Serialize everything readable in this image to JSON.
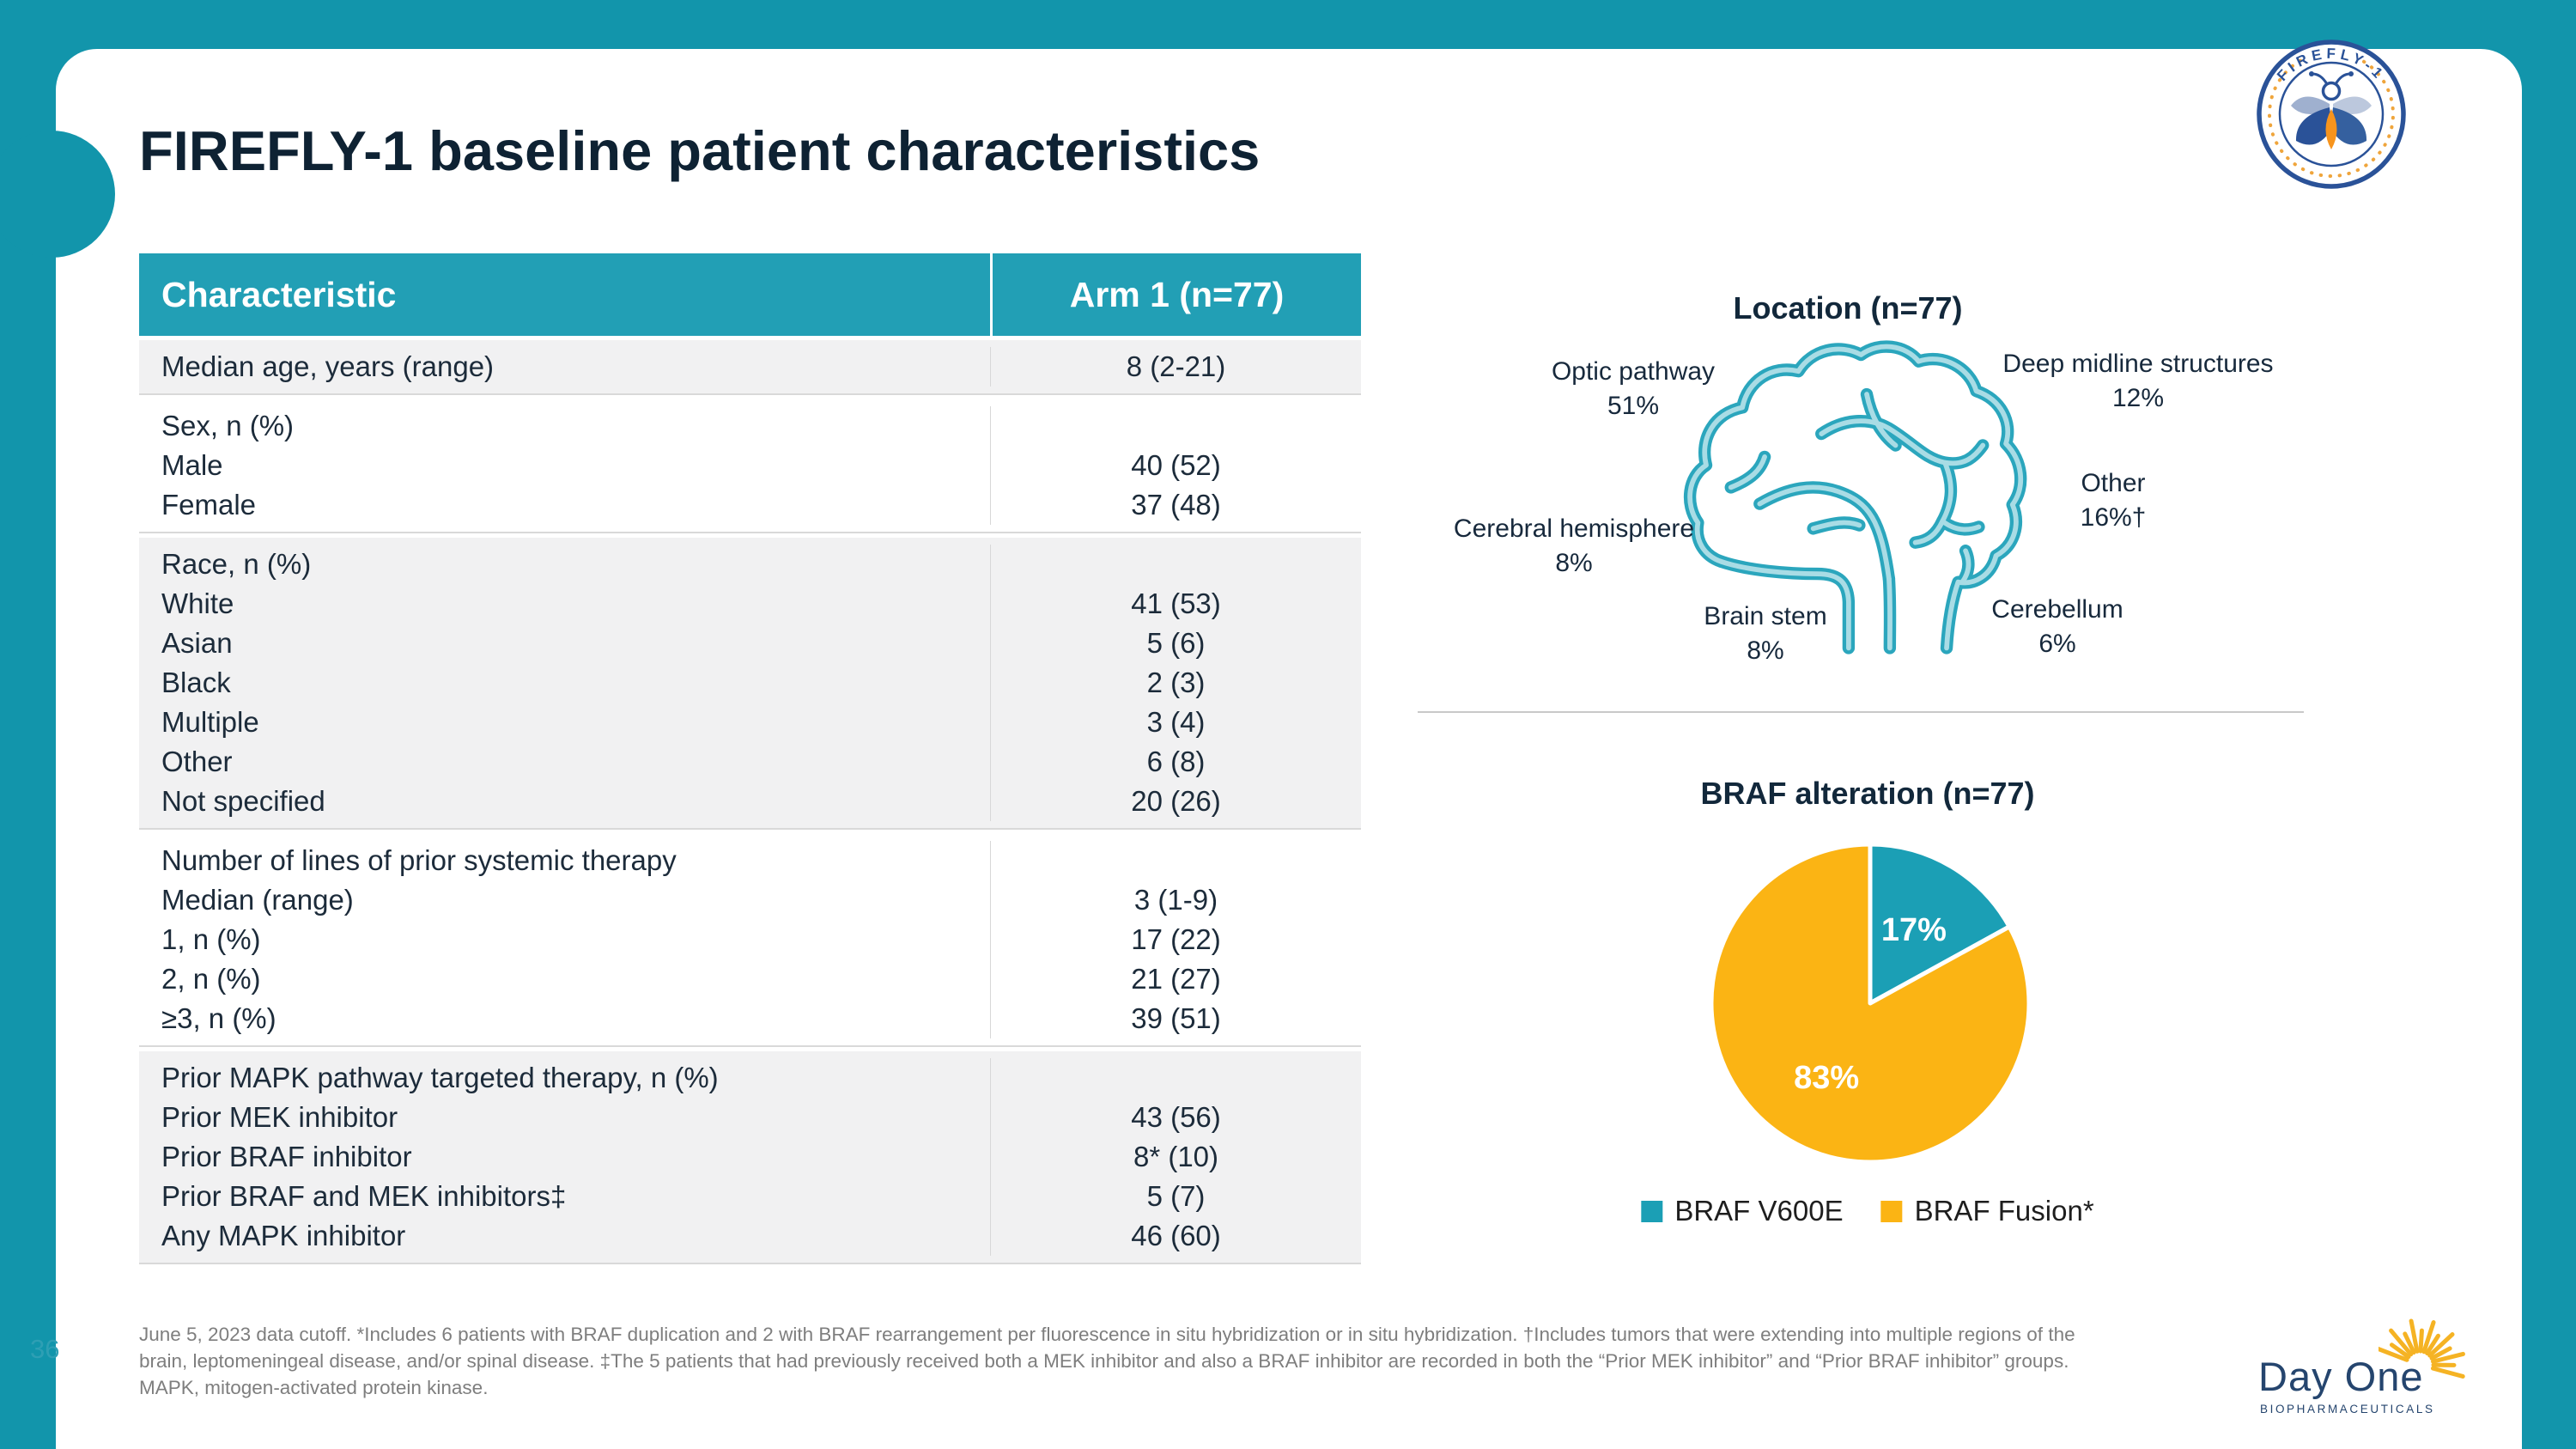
{
  "slide": {
    "title": "FIREFLY-1 baseline patient characteristics",
    "page_number": "36",
    "badge_text": "FIREFLY-1",
    "footer_logo": {
      "name": "Day One",
      "subtitle": "BIOPHARMACEUTICALS"
    }
  },
  "table": {
    "columns": [
      "Characteristic",
      "Arm 1 (n=77)"
    ],
    "sections": [
      {
        "shaded": true,
        "rows": [
          [
            "Median age, years (range)",
            "8 (2-21)"
          ]
        ]
      },
      {
        "shaded": false,
        "rows": [
          [
            "Sex, n (%)",
            ""
          ],
          [
            "Male",
            "40 (52)"
          ],
          [
            "Female",
            "37 (48)"
          ]
        ]
      },
      {
        "shaded": true,
        "rows": [
          [
            "Race, n (%)",
            ""
          ],
          [
            "White",
            "41 (53)"
          ],
          [
            "Asian",
            "5 (6)"
          ],
          [
            "Black",
            "2 (3)"
          ],
          [
            "Multiple",
            "3 (4)"
          ],
          [
            "Other",
            "6 (8)"
          ],
          [
            "Not specified",
            "20 (26)"
          ]
        ]
      },
      {
        "shaded": false,
        "rows": [
          [
            "Number of lines of prior systemic therapy",
            ""
          ],
          [
            "Median (range)",
            "3 (1-9)"
          ],
          [
            "1, n (%)",
            "17 (22)"
          ],
          [
            "2, n (%)",
            "21 (27)"
          ],
          [
            "≥3, n (%)",
            "39 (51)"
          ]
        ]
      },
      {
        "shaded": true,
        "rows": [
          [
            "Prior MAPK pathway targeted therapy, n (%)",
            ""
          ],
          [
            "Prior MEK inhibitor",
            "43 (56)"
          ],
          [
            "Prior BRAF inhibitor",
            "8* (10)"
          ],
          [
            "Prior BRAF and MEK inhibitors‡",
            "5 (7)"
          ],
          [
            "Any MAPK inhibitor",
            "46 (60)"
          ]
        ]
      }
    ]
  },
  "chart_data": [
    {
      "type": "diagram",
      "title": "Location (n=77)",
      "labels": [
        {
          "name": "Optic pathway",
          "value": "51%"
        },
        {
          "name": "Deep midline structures",
          "value": "12%"
        },
        {
          "name": "Other",
          "value": "16%†"
        },
        {
          "name": "Cerebral hemisphere",
          "value": "8%"
        },
        {
          "name": "Brain stem",
          "value": "8%"
        },
        {
          "name": "Cerebellum",
          "value": "6%"
        }
      ]
    },
    {
      "type": "pie",
      "title": "BRAF alteration (n=77)",
      "slices": [
        {
          "label": "BRAF V600E",
          "value": 17,
          "color": "#1B9FB5"
        },
        {
          "label": "BRAF Fusion*",
          "value": 83,
          "color": "#FBB414"
        }
      ],
      "legend_position": "bottom"
    }
  ],
  "footnote": {
    "lines": [
      "June 5, 2023 data cutoff. *Includes 6 patients with BRAF duplication and 2 with BRAF rearrangement per fluorescence in situ hybridization or in situ hybridization. †Includes tumors that were extending into multiple regions of the",
      "brain, leptomeningeal disease, and/or spinal disease. ‡The 5 patients that had previously received both a MEK inhibitor and also a BRAF inhibitor are recorded in both the “Prior MEK inhibitor” and “Prior BRAF inhibitor” groups.",
      "MAPK, mitogen-activated protein kinase."
    ]
  },
  "colors": {
    "background": "#1295AB",
    "table_header": "#229FB5",
    "row_shaded": "#F1F1F2",
    "accent_teal": "#1B9FB5",
    "accent_yellow": "#FBB414",
    "brain_stroke": "#2BA6BD",
    "footnote_text": "#7E7E7E"
  }
}
